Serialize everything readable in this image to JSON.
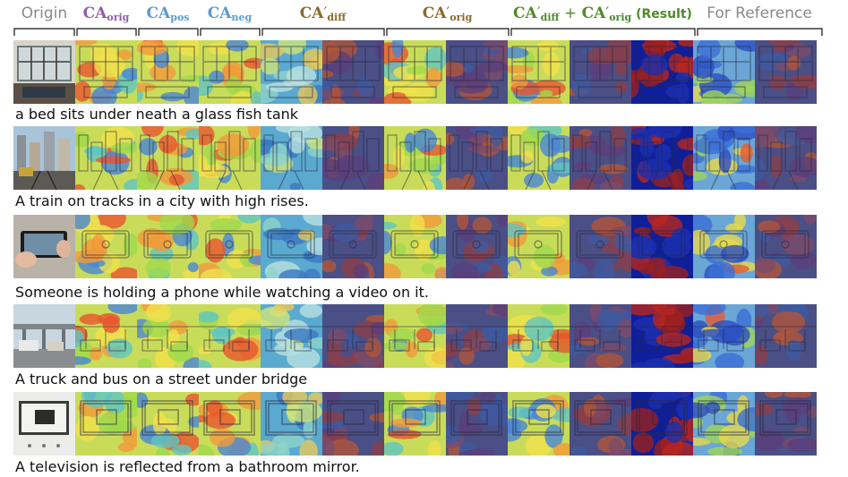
{
  "headers": {
    "origin": "Origin",
    "ca_orig": {
      "base": "CA",
      "sub": "orig",
      "color": "#8e5fa8"
    },
    "ca_pos": {
      "base": "CA",
      "sub": "pos",
      "color": "#5a9bd6"
    },
    "ca_neg": {
      "base": "CA",
      "sub": "neg",
      "color": "#5a9bd6"
    },
    "ca_diff_prime": {
      "base": "CA",
      "prime": "′",
      "sub": "diff",
      "color": "#8a6a2a"
    },
    "ca_orig_prime": {
      "base": "CA",
      "prime": "′",
      "sub": "orig",
      "color": "#8a6a2a"
    },
    "result": {
      "a": "CA",
      "prime": "′",
      "sub1": "diff",
      "plus": " + ",
      "b": "CA",
      "sub2": "orig",
      "suffix": " (Result)",
      "color": "#4f8a2b"
    },
    "reference": "For Reference"
  },
  "rows": [
    {
      "caption": "a bed sits under neath a glass fish tank",
      "scene": "room"
    },
    {
      "caption": "A train on tracks in a city with high rises.",
      "scene": "city"
    },
    {
      "caption": "Someone is holding a phone while watching a video on it.",
      "scene": "phone"
    },
    {
      "caption": "A truck and bus on a street under bridge",
      "scene": "bridge"
    },
    {
      "caption": "A television is reflected from a bathroom mirror.",
      "scene": "mirror"
    }
  ],
  "columns": [
    {
      "key": "origin",
      "kind": "photo"
    },
    {
      "key": "ca_orig",
      "kind": "jet"
    },
    {
      "key": "ca_pos",
      "kind": "jet"
    },
    {
      "key": "ca_neg",
      "kind": "jet"
    },
    {
      "key": "ca_diff_prime_1",
      "kind": "cool"
    },
    {
      "key": "ca_diff_prime_2",
      "kind": "dark"
    },
    {
      "key": "ca_orig_prime_1",
      "kind": "jet"
    },
    {
      "key": "ca_orig_prime_2",
      "kind": "dark"
    },
    {
      "key": "result_1",
      "kind": "jet"
    },
    {
      "key": "result_2",
      "kind": "dark"
    },
    {
      "key": "result_3",
      "kind": "mask"
    },
    {
      "key": "reference_1",
      "kind": "ref"
    },
    {
      "key": "reference_2",
      "kind": "dark"
    }
  ]
}
